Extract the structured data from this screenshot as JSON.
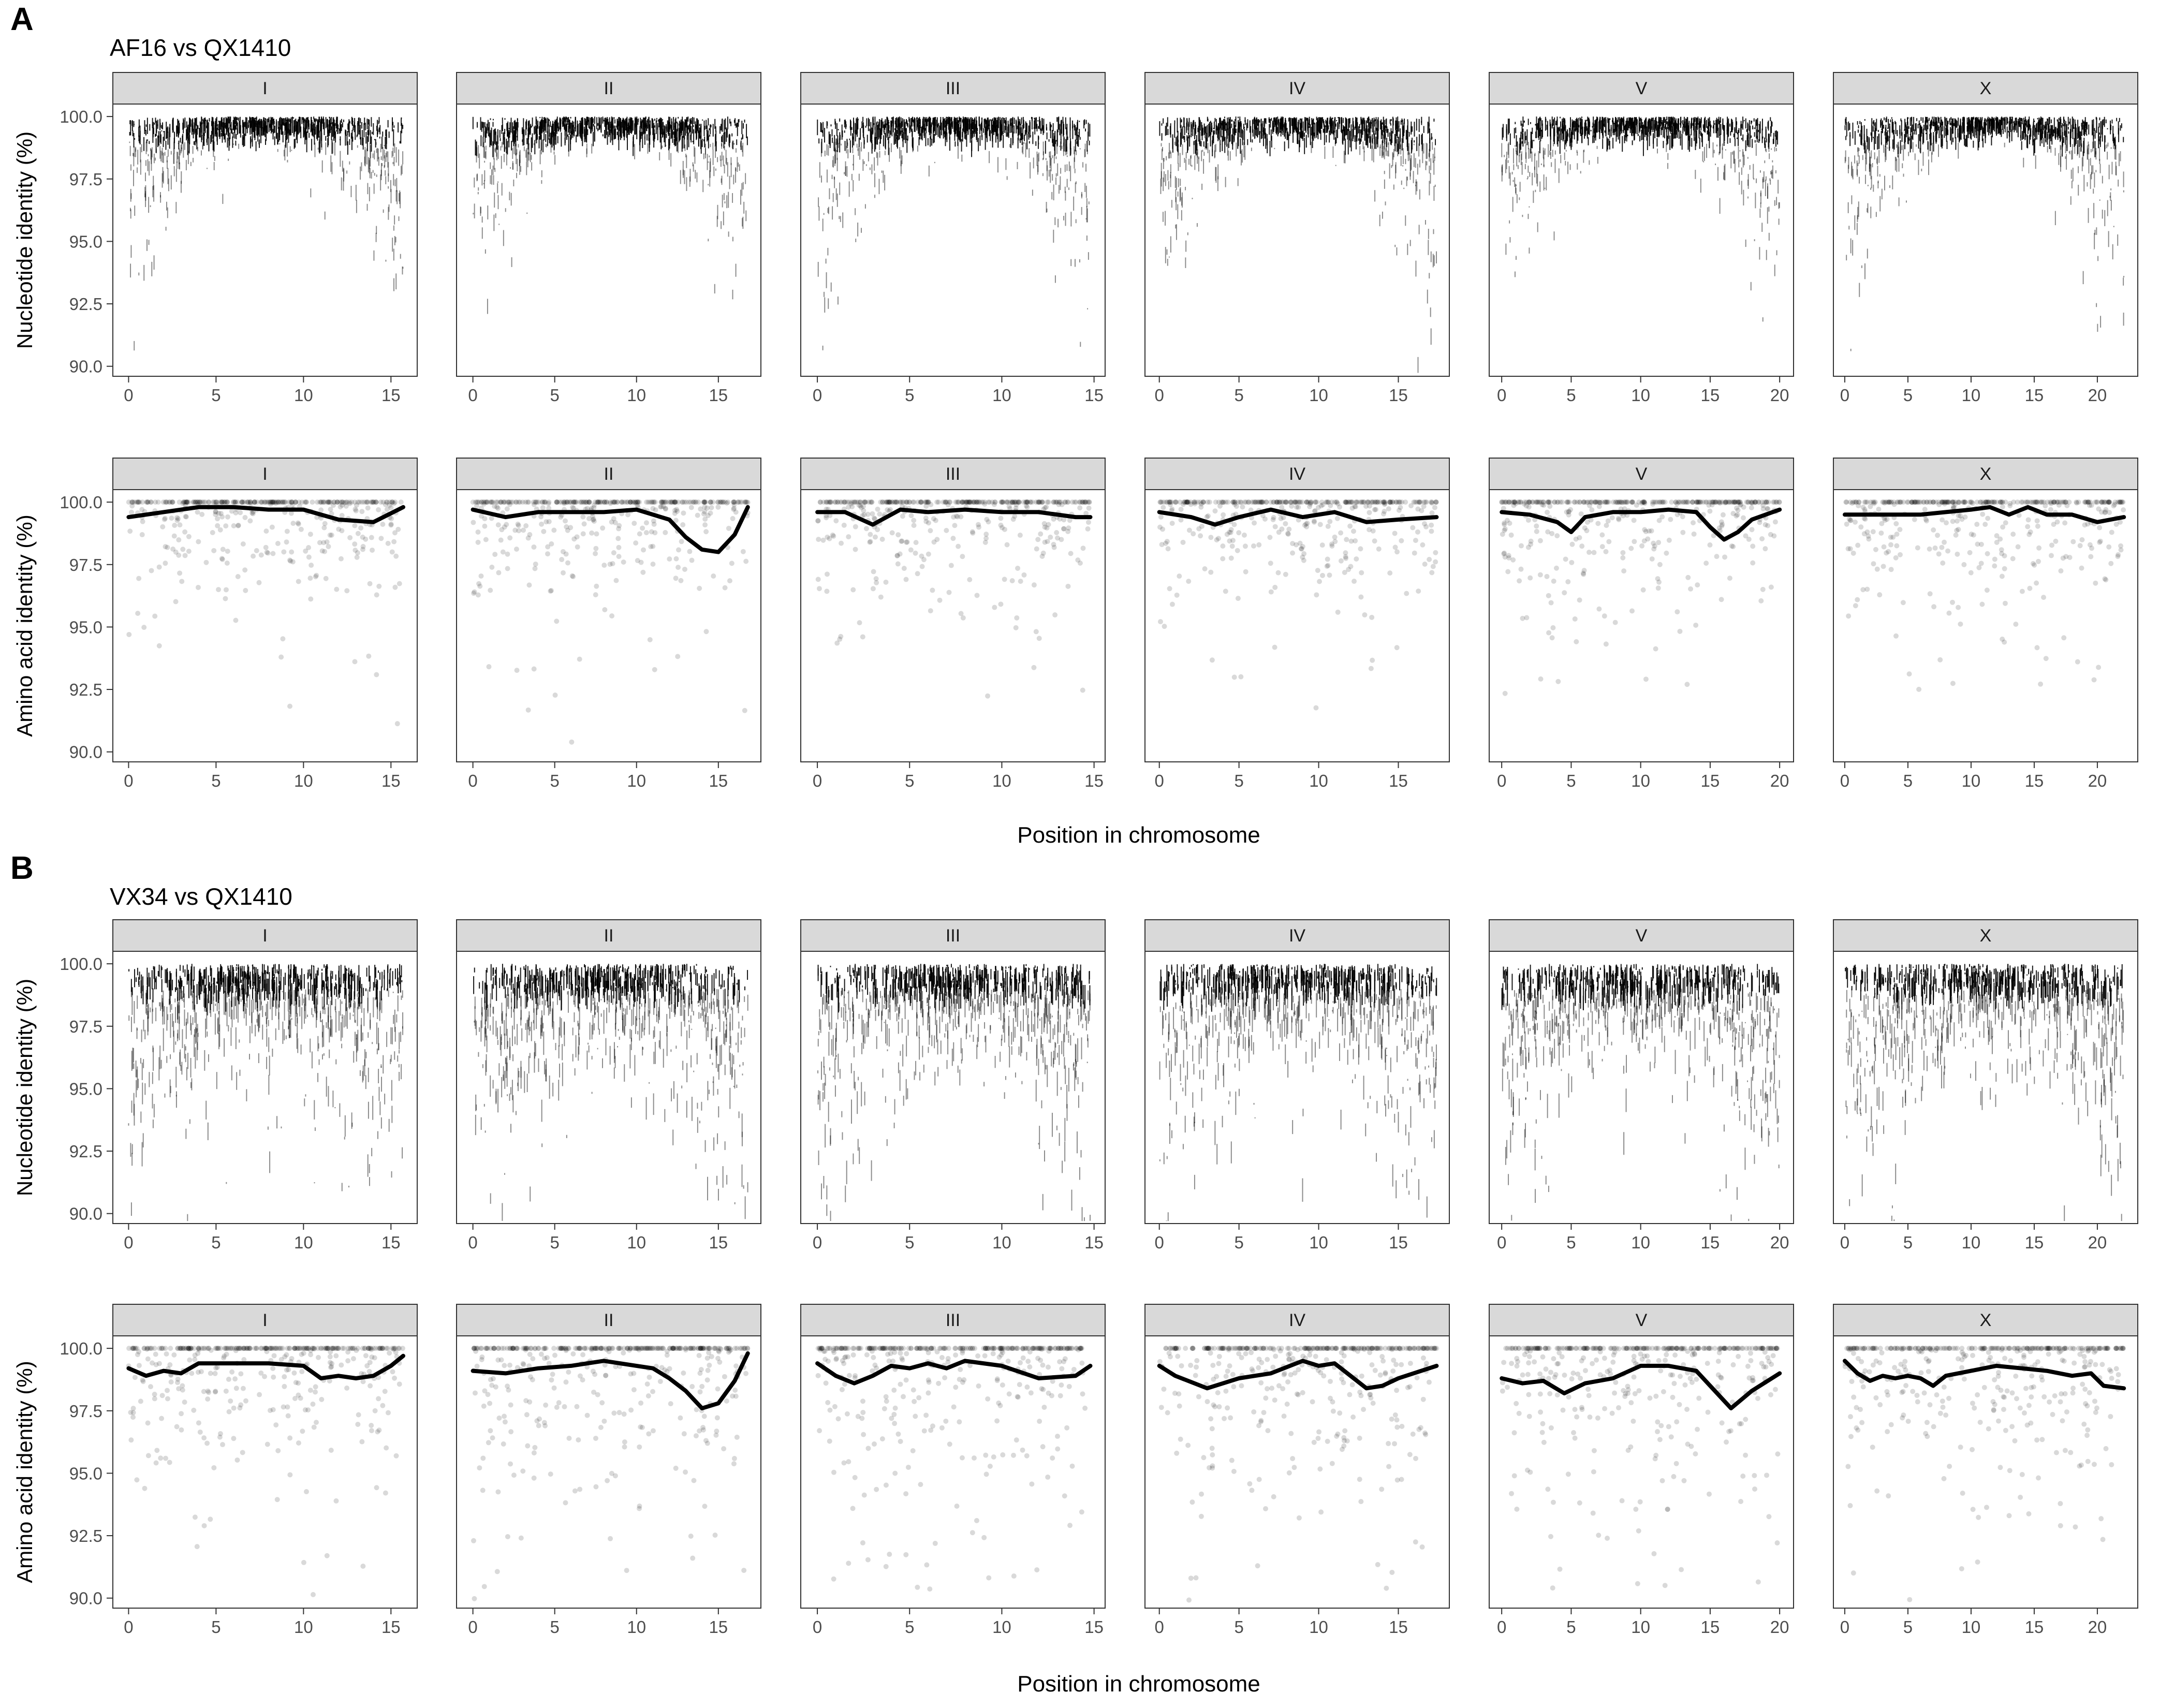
{
  "panels": [
    {
      "label": "A",
      "title": "AF16 vs QX1410",
      "xlabel": "Position in chromosome",
      "rows": [
        {
          "type": "nucleotide",
          "ylabel": "Nucleotide identity (%)"
        },
        {
          "type": "aminoacid",
          "ylabel": "Amino acid identity (%)"
        }
      ]
    },
    {
      "label": "B",
      "title": "VX34 vs QX1410",
      "xlabel": "Position in chromosome",
      "rows": [
        {
          "type": "nucleotide",
          "ylabel": "Nucleotide identity (%)"
        },
        {
          "type": "aminoacid",
          "ylabel": "Amino acid identity (%)"
        }
      ]
    }
  ],
  "chart_data": {
    "type": "scatter",
    "chromosomes": [
      "I",
      "II",
      "III",
      "IV",
      "V",
      "X"
    ],
    "xlim": [
      [
        -0.9,
        16.5
      ],
      [
        -1.0,
        17.6
      ],
      [
        -0.9,
        15.6
      ],
      [
        -0.9,
        18.2
      ],
      [
        -0.9,
        21.0
      ],
      [
        -0.9,
        23.2
      ]
    ],
    "xticks": [
      [
        0,
        5,
        10,
        15
      ],
      [
        0,
        5,
        10,
        15
      ],
      [
        0,
        5,
        10,
        15
      ],
      [
        0,
        5,
        10,
        15
      ],
      [
        0,
        5,
        10,
        15,
        20
      ],
      [
        0,
        5,
        10,
        15,
        20
      ]
    ],
    "chrom_length_mb": [
      15.7,
      16.8,
      14.8,
      17.4,
      20.0,
      22.1
    ],
    "ylim": [
      89.6,
      100.5
    ],
    "yticks": [
      90.0,
      92.5,
      95.0,
      97.5,
      100.0
    ],
    "ytick_labels": [
      "90.0",
      "92.5",
      "95.0",
      "97.5",
      "100.0"
    ],
    "xtick_labels": [
      "0",
      "5",
      "10",
      "15",
      "20"
    ],
    "xlabel": "Position in chromosome",
    "nucleotide_mark": "vertical segment per alignment block",
    "aminoacid_mark": "translucent point per gene with smoothed trend line",
    "trend_lines": {
      "AF16 vs QX1410": [
        {
          "chrom": "I",
          "x": [
            0,
            2,
            4,
            6,
            8,
            10,
            12,
            14,
            15.7
          ],
          "y": [
            99.4,
            99.6,
            99.8,
            99.8,
            99.7,
            99.7,
            99.3,
            99.2,
            99.8
          ]
        },
        {
          "chrom": "II",
          "x": [
            0,
            2,
            4,
            6,
            8,
            10,
            12,
            13,
            14,
            15,
            16,
            16.8
          ],
          "y": [
            99.7,
            99.4,
            99.6,
            99.6,
            99.6,
            99.7,
            99.3,
            98.6,
            98.1,
            98.0,
            98.7,
            99.8
          ]
        },
        {
          "chrom": "III",
          "x": [
            0,
            1.5,
            3,
            4.5,
            6,
            8,
            10,
            12,
            14,
            14.8
          ],
          "y": [
            99.6,
            99.6,
            99.1,
            99.7,
            99.6,
            99.7,
            99.6,
            99.6,
            99.4,
            99.4
          ]
        },
        {
          "chrom": "IV",
          "x": [
            0,
            2,
            3.5,
            5,
            7,
            9,
            11,
            13,
            15,
            17.4
          ],
          "y": [
            99.6,
            99.4,
            99.1,
            99.4,
            99.7,
            99.4,
            99.6,
            99.2,
            99.3,
            99.4
          ]
        },
        {
          "chrom": "V",
          "x": [
            0,
            2,
            4,
            5,
            6,
            8,
            10,
            12,
            14,
            15,
            16,
            17,
            18,
            20
          ],
          "y": [
            99.6,
            99.5,
            99.2,
            98.8,
            99.4,
            99.6,
            99.6,
            99.7,
            99.6,
            99.0,
            98.5,
            98.8,
            99.3,
            99.7
          ]
        },
        {
          "chrom": "X",
          "x": [
            0,
            2,
            4,
            6,
            8,
            10,
            11.5,
            13,
            14.5,
            16,
            18,
            20,
            22.1
          ],
          "y": [
            99.5,
            99.5,
            99.5,
            99.5,
            99.6,
            99.7,
            99.8,
            99.5,
            99.8,
            99.5,
            99.5,
            99.2,
            99.4
          ]
        }
      ],
      "VX34 vs QX1410": [
        {
          "chrom": "I",
          "x": [
            0,
            1,
            2,
            3,
            4,
            6,
            8,
            10,
            11,
            12,
            13,
            14,
            15,
            15.7
          ],
          "y": [
            99.2,
            98.9,
            99.1,
            99.0,
            99.4,
            99.4,
            99.4,
            99.3,
            98.8,
            98.9,
            98.8,
            98.9,
            99.3,
            99.7
          ]
        },
        {
          "chrom": "II",
          "x": [
            0,
            2,
            4,
            6,
            8,
            10,
            11,
            12,
            13,
            14,
            15,
            16,
            16.8
          ],
          "y": [
            99.1,
            99.0,
            99.2,
            99.3,
            99.5,
            99.3,
            99.2,
            98.8,
            98.3,
            97.6,
            97.8,
            98.7,
            99.8
          ]
        },
        {
          "chrom": "III",
          "x": [
            0,
            1,
            2,
            3,
            4,
            5,
            6,
            7,
            8,
            9,
            10,
            12,
            14,
            14.8
          ],
          "y": [
            99.4,
            98.9,
            98.6,
            98.9,
            99.3,
            99.2,
            99.4,
            99.2,
            99.5,
            99.4,
            99.3,
            98.8,
            98.9,
            99.3
          ]
        },
        {
          "chrom": "IV",
          "x": [
            0,
            1,
            3,
            5,
            7,
            9,
            10,
            11,
            12,
            13,
            14,
            15,
            17.4
          ],
          "y": [
            99.3,
            98.9,
            98.4,
            98.8,
            99.0,
            99.5,
            99.3,
            99.4,
            98.9,
            98.4,
            98.5,
            98.8,
            99.3
          ]
        },
        {
          "chrom": "V",
          "x": [
            0,
            1.5,
            3,
            4.5,
            6,
            8,
            10,
            12,
            14,
            15,
            16.5,
            18,
            20
          ],
          "y": [
            98.8,
            98.6,
            98.7,
            98.2,
            98.6,
            98.8,
            99.3,
            99.3,
            99.1,
            98.5,
            97.6,
            98.3,
            99.0
          ]
        },
        {
          "chrom": "X",
          "x": [
            0,
            1,
            2,
            3,
            4,
            5,
            6,
            7,
            8,
            10,
            12,
            14,
            16,
            18,
            19.5,
            20.5,
            22.1
          ],
          "y": [
            99.5,
            99.0,
            98.7,
            98.9,
            98.8,
            98.9,
            98.8,
            98.5,
            98.9,
            99.1,
            99.3,
            99.2,
            99.1,
            98.9,
            99.0,
            98.5,
            98.4
          ]
        }
      ]
    }
  }
}
